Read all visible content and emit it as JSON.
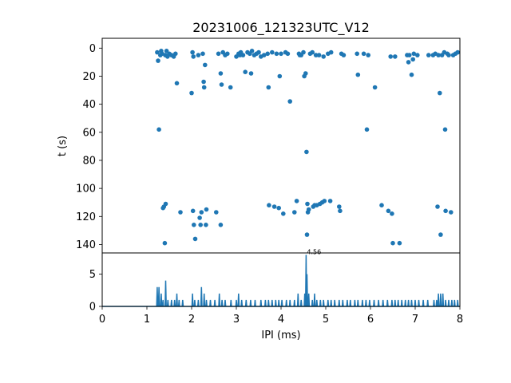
{
  "chart_data": [
    {
      "type": "scatter",
      "title": "20231006_121323UTC_V12",
      "xlabel": "",
      "ylabel": "t (s)",
      "xlim": [
        0,
        8
      ],
      "ylim": [
        146,
        -7
      ],
      "y_inverted": true,
      "yticks": [
        "0",
        "20",
        "40",
        "60",
        "80",
        "100",
        "120",
        "140"
      ],
      "grid": false,
      "color": "#1f77b4",
      "points": [
        [
          1.23,
          3
        ],
        [
          1.25,
          9
        ],
        [
          1.27,
          58
        ],
        [
          1.3,
          5
        ],
        [
          1.32,
          2
        ],
        [
          1.34,
          4
        ],
        [
          1.36,
          114
        ],
        [
          1.38,
          113
        ],
        [
          1.4,
          139
        ],
        [
          1.41,
          5
        ],
        [
          1.42,
          111
        ],
        [
          1.44,
          2
        ],
        [
          1.46,
          6
        ],
        [
          1.5,
          4
        ],
        [
          1.55,
          5
        ],
        [
          1.6,
          6
        ],
        [
          1.64,
          4
        ],
        [
          1.67,
          25
        ],
        [
          1.75,
          117
        ],
        [
          2.0,
          32
        ],
        [
          2.02,
          3
        ],
        [
          2.03,
          116
        ],
        [
          2.04,
          6
        ],
        [
          2.05,
          126
        ],
        [
          2.08,
          136
        ],
        [
          2.15,
          5
        ],
        [
          2.18,
          121
        ],
        [
          2.2,
          126
        ],
        [
          2.22,
          117
        ],
        [
          2.25,
          4
        ],
        [
          2.27,
          24
        ],
        [
          2.28,
          28
        ],
        [
          2.3,
          12
        ],
        [
          2.32,
          126
        ],
        [
          2.33,
          115
        ],
        [
          2.55,
          117
        ],
        [
          2.6,
          4
        ],
        [
          2.65,
          126
        ],
        [
          2.65,
          18
        ],
        [
          2.67,
          26
        ],
        [
          2.7,
          3
        ],
        [
          2.75,
          5
        ],
        [
          2.8,
          4
        ],
        [
          2.87,
          28
        ],
        [
          3.0,
          6
        ],
        [
          3.05,
          4
        ],
        [
          3.08,
          5
        ],
        [
          3.1,
          3
        ],
        [
          3.15,
          5
        ],
        [
          3.2,
          17
        ],
        [
          3.25,
          3
        ],
        [
          3.3,
          4
        ],
        [
          3.33,
          18
        ],
        [
          3.35,
          2
        ],
        [
          3.4,
          5
        ],
        [
          3.45,
          4
        ],
        [
          3.5,
          3
        ],
        [
          3.55,
          6
        ],
        [
          3.62,
          5
        ],
        [
          3.7,
          4
        ],
        [
          3.72,
          28
        ],
        [
          3.73,
          112
        ],
        [
          3.8,
          3
        ],
        [
          3.85,
          113
        ],
        [
          3.9,
          4
        ],
        [
          3.95,
          114
        ],
        [
          3.97,
          20
        ],
        [
          4.0,
          4
        ],
        [
          4.05,
          118
        ],
        [
          4.1,
          3
        ],
        [
          4.15,
          4
        ],
        [
          4.2,
          38
        ],
        [
          4.3,
          117
        ],
        [
          4.35,
          109
        ],
        [
          4.4,
          4
        ],
        [
          4.42,
          5
        ],
        [
          4.45,
          5
        ],
        [
          4.5,
          3
        ],
        [
          4.52,
          20
        ],
        [
          4.55,
          18
        ],
        [
          4.57,
          74
        ],
        [
          4.58,
          133
        ],
        [
          4.59,
          111
        ],
        [
          4.6,
          117
        ],
        [
          4.62,
          115
        ],
        [
          4.65,
          4
        ],
        [
          4.7,
          3
        ],
        [
          4.72,
          113
        ],
        [
          4.75,
          112
        ],
        [
          4.78,
          5
        ],
        [
          4.8,
          112
        ],
        [
          4.85,
          5
        ],
        [
          4.87,
          111
        ],
        [
          4.92,
          110
        ],
        [
          4.95,
          6
        ],
        [
          4.97,
          109
        ],
        [
          5.05,
          4
        ],
        [
          5.1,
          109
        ],
        [
          5.12,
          3
        ],
        [
          5.3,
          113
        ],
        [
          5.32,
          116
        ],
        [
          5.35,
          4
        ],
        [
          5.4,
          5
        ],
        [
          5.7,
          4
        ],
        [
          5.72,
          19
        ],
        [
          5.85,
          4
        ],
        [
          5.92,
          58
        ],
        [
          5.95,
          5
        ],
        [
          6.1,
          28
        ],
        [
          6.25,
          112
        ],
        [
          6.4,
          116
        ],
        [
          6.45,
          6
        ],
        [
          6.48,
          118
        ],
        [
          6.5,
          139
        ],
        [
          6.55,
          6
        ],
        [
          6.65,
          139
        ],
        [
          6.82,
          5
        ],
        [
          6.85,
          10
        ],
        [
          6.87,
          5
        ],
        [
          6.92,
          19
        ],
        [
          6.95,
          8
        ],
        [
          6.97,
          4
        ],
        [
          7.05,
          5
        ],
        [
          7.3,
          5
        ],
        [
          7.4,
          5
        ],
        [
          7.45,
          4
        ],
        [
          7.5,
          113
        ],
        [
          7.52,
          5
        ],
        [
          7.55,
          32
        ],
        [
          7.57,
          133
        ],
        [
          7.6,
          5
        ],
        [
          7.65,
          3
        ],
        [
          7.67,
          58
        ],
        [
          7.68,
          116
        ],
        [
          7.72,
          4
        ],
        [
          7.75,
          5
        ],
        [
          7.8,
          117
        ],
        [
          7.85,
          5
        ],
        [
          7.9,
          4
        ],
        [
          7.95,
          3
        ]
      ]
    },
    {
      "type": "line",
      "xlabel": "IPI (ms)",
      "ylabel": "",
      "xlim": [
        0,
        8
      ],
      "ylim": [
        0,
        8.3
      ],
      "xticks": [
        "0",
        "1",
        "2",
        "3",
        "4",
        "5",
        "6",
        "7",
        "8"
      ],
      "yticks": [
        "0",
        "5"
      ],
      "grid": false,
      "color": "#1f77b4",
      "peak_annotation": {
        "x": 4.56,
        "y": 8,
        "text": "4.56"
      },
      "peaks": [
        [
          1.23,
          3
        ],
        [
          1.27,
          3
        ],
        [
          1.32,
          2
        ],
        [
          1.36,
          1
        ],
        [
          1.42,
          4
        ],
        [
          1.47,
          1
        ],
        [
          1.55,
          1
        ],
        [
          1.62,
          1
        ],
        [
          1.67,
          2
        ],
        [
          1.72,
          1
        ],
        [
          1.8,
          1
        ],
        [
          2.02,
          2
        ],
        [
          2.07,
          1
        ],
        [
          2.15,
          1
        ],
        [
          2.22,
          3
        ],
        [
          2.28,
          2
        ],
        [
          2.33,
          1
        ],
        [
          2.42,
          1
        ],
        [
          2.52,
          1
        ],
        [
          2.62,
          2
        ],
        [
          2.68,
          1
        ],
        [
          2.75,
          1
        ],
        [
          2.88,
          1
        ],
        [
          3.0,
          1
        ],
        [
          3.05,
          2
        ],
        [
          3.12,
          1
        ],
        [
          3.22,
          1
        ],
        [
          3.32,
          1
        ],
        [
          3.42,
          1
        ],
        [
          3.55,
          1
        ],
        [
          3.65,
          1
        ],
        [
          3.72,
          1
        ],
        [
          3.8,
          1
        ],
        [
          3.88,
          1
        ],
        [
          3.95,
          1
        ],
        [
          4.02,
          1
        ],
        [
          4.12,
          1
        ],
        [
          4.2,
          1
        ],
        [
          4.3,
          1
        ],
        [
          4.38,
          2
        ],
        [
          4.45,
          1
        ],
        [
          4.53,
          2
        ],
        [
          4.56,
          8
        ],
        [
          4.58,
          5
        ],
        [
          4.62,
          2
        ],
        [
          4.7,
          1
        ],
        [
          4.75,
          2
        ],
        [
          4.8,
          1
        ],
        [
          4.88,
          1
        ],
        [
          4.95,
          1
        ],
        [
          5.05,
          1
        ],
        [
          5.12,
          1
        ],
        [
          5.2,
          1
        ],
        [
          5.3,
          1
        ],
        [
          5.38,
          1
        ],
        [
          5.48,
          1
        ],
        [
          5.55,
          1
        ],
        [
          5.65,
          1
        ],
        [
          5.72,
          1
        ],
        [
          5.82,
          1
        ],
        [
          5.9,
          1
        ],
        [
          5.98,
          1
        ],
        [
          6.08,
          1
        ],
        [
          6.18,
          1
        ],
        [
          6.28,
          1
        ],
        [
          6.38,
          1
        ],
        [
          6.48,
          1
        ],
        [
          6.55,
          1
        ],
        [
          6.62,
          1
        ],
        [
          6.7,
          1
        ],
        [
          6.78,
          1
        ],
        [
          6.85,
          1
        ],
        [
          6.92,
          1
        ],
        [
          7.0,
          1
        ],
        [
          7.08,
          1
        ],
        [
          7.18,
          1
        ],
        [
          7.28,
          1
        ],
        [
          7.42,
          1
        ],
        [
          7.48,
          1
        ],
        [
          7.52,
          2
        ],
        [
          7.57,
          2
        ],
        [
          7.62,
          2
        ],
        [
          7.68,
          1
        ],
        [
          7.75,
          1
        ],
        [
          7.82,
          1
        ],
        [
          7.88,
          1
        ],
        [
          7.95,
          1
        ]
      ]
    }
  ]
}
